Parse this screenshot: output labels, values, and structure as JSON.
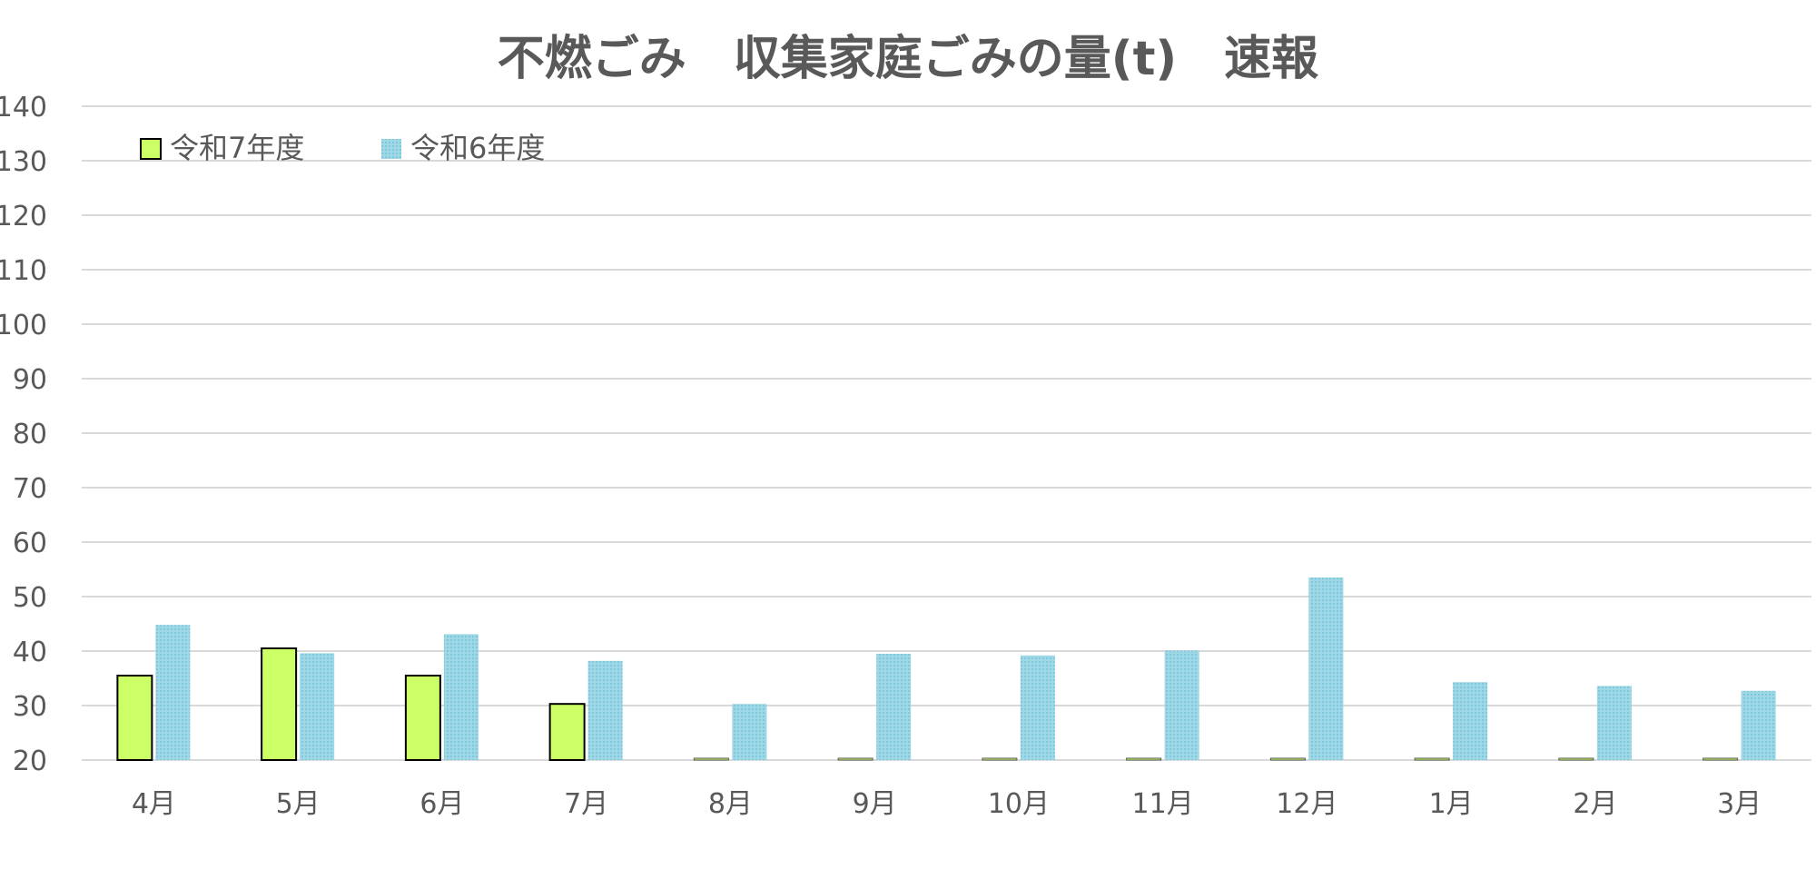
{
  "chart_data": {
    "type": "bar",
    "title": "不燃ごみ　収集家庭ごみの量(t)　速報",
    "xlabel": "",
    "ylabel": "",
    "ylim": [
      20,
      140
    ],
    "yticks": [
      20,
      30,
      40,
      50,
      60,
      70,
      80,
      90,
      100,
      110,
      120,
      130,
      140
    ],
    "grid": true,
    "legend_position": "top-left",
    "categories": [
      "4月",
      "5月",
      "6月",
      "7月",
      "8月",
      "9月",
      "10月",
      "11月",
      "12月",
      "1月",
      "2月",
      "3月"
    ],
    "series": [
      {
        "name": "令和7年度",
        "color": "#CCFF66",
        "values": [
          35.5,
          40.5,
          35.5,
          30.3,
          null,
          null,
          null,
          null,
          null,
          null,
          null,
          null
        ]
      },
      {
        "name": "令和6年度",
        "color": "#9ED8E6",
        "values": [
          44.8,
          39.6,
          43.1,
          38.2,
          30.3,
          39.5,
          39.2,
          40.1,
          53.5,
          34.3,
          33.6,
          32.7
        ]
      }
    ]
  }
}
